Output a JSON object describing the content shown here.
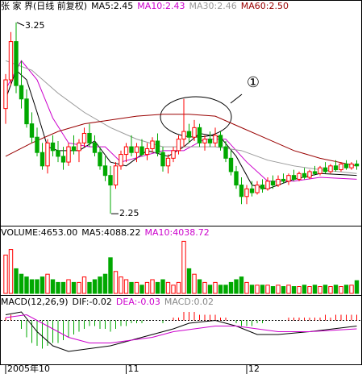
{
  "chart_data": [
    {
      "type": "candlestick",
      "title": "张 家 界(日线 前复权)",
      "callout": "①",
      "up_color": "#ff0000",
      "down_color": "#00a800",
      "ylim": [
        2.2,
        3.3
      ],
      "open": [
        2.8,
        2.95,
        3.15,
        2.92,
        2.85,
        2.72,
        2.65,
        2.57,
        2.5,
        2.62,
        2.58,
        2.55,
        2.52,
        2.6,
        2.58,
        2.62,
        2.67,
        2.62,
        2.57,
        2.5,
        2.45,
        2.4,
        2.5,
        2.56,
        2.6,
        2.57,
        2.6,
        2.56,
        2.59,
        2.63,
        2.57,
        2.5,
        2.54,
        2.58,
        2.64,
        2.68,
        2.65,
        2.7,
        2.62,
        2.64,
        2.62,
        2.66,
        2.6,
        2.54,
        2.47,
        2.4,
        2.34,
        2.38,
        2.36,
        2.4,
        2.38,
        2.42,
        2.4,
        2.43,
        2.42,
        2.45,
        2.43,
        2.46,
        2.44,
        2.47,
        2.46,
        2.49,
        2.47,
        2.5,
        2.48,
        2.51,
        2.49,
        2.51
      ],
      "high": [
        2.98,
        3.2,
        3.25,
        3.05,
        2.9,
        2.78,
        2.7,
        2.62,
        2.64,
        2.66,
        2.63,
        2.6,
        2.62,
        2.66,
        2.64,
        2.7,
        2.72,
        2.66,
        2.6,
        2.55,
        2.5,
        2.52,
        2.58,
        2.62,
        2.66,
        2.62,
        2.64,
        2.62,
        2.65,
        2.67,
        2.6,
        2.56,
        2.6,
        2.66,
        2.85,
        2.72,
        2.74,
        2.72,
        2.66,
        2.68,
        2.7,
        2.68,
        2.63,
        2.58,
        2.5,
        2.44,
        2.4,
        2.42,
        2.42,
        2.43,
        2.44,
        2.45,
        2.45,
        2.46,
        2.46,
        2.48,
        2.47,
        2.49,
        2.48,
        2.5,
        2.5,
        2.52,
        2.51,
        2.53,
        2.52,
        2.53,
        2.52,
        2.53
      ],
      "low": [
        2.72,
        2.92,
        2.88,
        2.8,
        2.7,
        2.62,
        2.55,
        2.48,
        2.46,
        2.55,
        2.52,
        2.48,
        2.5,
        2.56,
        2.52,
        2.6,
        2.6,
        2.55,
        2.48,
        2.42,
        2.25,
        2.38,
        2.48,
        2.52,
        2.55,
        2.52,
        2.55,
        2.53,
        2.57,
        2.55,
        2.47,
        2.46,
        2.52,
        2.56,
        2.6,
        2.62,
        2.63,
        2.6,
        2.58,
        2.6,
        2.6,
        2.58,
        2.52,
        2.45,
        2.38,
        2.3,
        2.3,
        2.34,
        2.35,
        2.36,
        2.37,
        2.38,
        2.39,
        2.41,
        2.4,
        2.42,
        2.42,
        2.43,
        2.43,
        2.45,
        2.45,
        2.46,
        2.46,
        2.47,
        2.47,
        2.48,
        2.48,
        2.48
      ],
      "close": [
        2.95,
        3.15,
        2.92,
        2.85,
        2.72,
        2.65,
        2.57,
        2.5,
        2.62,
        2.58,
        2.55,
        2.52,
        2.6,
        2.58,
        2.62,
        2.67,
        2.62,
        2.57,
        2.5,
        2.45,
        2.4,
        2.5,
        2.56,
        2.6,
        2.57,
        2.6,
        2.56,
        2.59,
        2.63,
        2.57,
        2.5,
        2.54,
        2.58,
        2.64,
        2.68,
        2.65,
        2.7,
        2.62,
        2.64,
        2.62,
        2.66,
        2.6,
        2.54,
        2.47,
        2.4,
        2.34,
        2.38,
        2.36,
        2.4,
        2.38,
        2.42,
        2.4,
        2.43,
        2.42,
        2.45,
        2.43,
        2.46,
        2.44,
        2.47,
        2.46,
        2.49,
        2.47,
        2.5,
        2.48,
        2.51,
        2.49,
        2.51,
        2.5
      ],
      "annotations": [
        {
          "x": 2,
          "value": 3.25
        },
        {
          "x": 20,
          "value": 2.25
        }
      ],
      "lines": [
        {
          "name": "MA5:2.45",
          "color": "#000000",
          "x": [
            0,
            2,
            4,
            6,
            8,
            10,
            14,
            17,
            20,
            23,
            27,
            31,
            34,
            37,
            41,
            44,
            47,
            50,
            55,
            60,
            67
          ],
          "values": [
            2.85,
            3.0,
            2.95,
            2.78,
            2.6,
            2.58,
            2.58,
            2.63,
            2.52,
            2.5,
            2.58,
            2.55,
            2.6,
            2.67,
            2.65,
            2.55,
            2.4,
            2.38,
            2.43,
            2.46,
            2.45
          ]
        },
        {
          "name": "MA10:2.43",
          "color": "#cc00cc",
          "x": [
            0,
            3,
            6,
            9,
            12,
            16,
            19,
            22,
            26,
            30,
            34,
            38,
            42,
            46,
            50,
            55,
            60,
            67
          ],
          "values": [
            2.9,
            3.05,
            2.95,
            2.75,
            2.62,
            2.6,
            2.6,
            2.52,
            2.55,
            2.58,
            2.58,
            2.64,
            2.64,
            2.52,
            2.42,
            2.42,
            2.44,
            2.43
          ]
        },
        {
          "name": "MA30:2.46",
          "color": "#999999",
          "x": [
            0,
            5,
            10,
            15,
            20,
            25,
            30,
            35,
            40,
            45,
            50,
            55,
            60,
            67
          ],
          "values": [
            3.05,
            3.0,
            2.88,
            2.78,
            2.7,
            2.64,
            2.6,
            2.6,
            2.6,
            2.58,
            2.53,
            2.5,
            2.48,
            2.46
          ]
        },
        {
          "name": "MA60:2.50",
          "color": "#990000",
          "x": [
            0,
            5,
            10,
            15,
            20,
            25,
            30,
            35,
            40,
            45,
            50,
            55,
            60,
            67
          ],
          "values": [
            2.55,
            2.62,
            2.68,
            2.72,
            2.74,
            2.76,
            2.77,
            2.77,
            2.76,
            2.7,
            2.64,
            2.58,
            2.54,
            2.5
          ]
        }
      ]
    },
    {
      "type": "bar",
      "title": "VOLUME:4653.00",
      "ylim": [
        0,
        20000
      ],
      "legend": [
        {
          "label": "MA5:4088.22",
          "color": "#000000"
        },
        {
          "label": "MA10:4038.72",
          "color": "#cc00cc"
        }
      ],
      "values": [
        14000,
        16000,
        9000,
        7000,
        6000,
        5000,
        5000,
        6000,
        7000,
        5000,
        4000,
        4000,
        5000,
        4000,
        4000,
        6000,
        4000,
        5000,
        6000,
        7000,
        13000,
        8000,
        6000,
        5000,
        4000,
        4000,
        3000,
        4000,
        5000,
        4000,
        5000,
        4000,
        3000,
        4000,
        19000,
        9000,
        7000,
        5000,
        4000,
        3000,
        4000,
        3000,
        3000,
        4000,
        5000,
        6000,
        4000,
        3000,
        3000,
        3000,
        3000,
        2500,
        3000,
        2500,
        3000,
        2500,
        2500,
        3000,
        2500,
        3000,
        2500,
        3000,
        2500,
        3000,
        2500,
        3000,
        3000,
        4653
      ]
    },
    {
      "type": "macd",
      "title": "MACD(12,26,9)",
      "ylim": [
        -0.15,
        0.05
      ],
      "bars": {
        "name": "MACD:0.02",
        "color": "#888888",
        "values": [
          0.01,
          0.02,
          0,
          -0.03,
          -0.06,
          -0.08,
          -0.09,
          -0.1,
          -0.09,
          -0.08,
          -0.08,
          -0.07,
          -0.06,
          -0.05,
          -0.04,
          -0.03,
          -0.02,
          -0.02,
          -0.03,
          -0.03,
          -0.04,
          -0.03,
          -0.02,
          -0.02,
          -0.01,
          -0.01,
          -0.01,
          0,
          0,
          0,
          -0.01,
          0,
          0.01,
          0.01,
          0.03,
          0.03,
          0.03,
          0.02,
          0.02,
          0.02,
          0.02,
          0.01,
          0.01,
          0,
          -0.01,
          -0.02,
          -0.02,
          -0.02,
          -0.01,
          -0.01,
          0,
          0,
          0,
          0,
          0.01,
          0.01,
          0.01,
          0.01,
          0.01,
          0.01,
          0.01,
          0.02,
          0.01,
          0.02,
          0.02,
          0.02,
          0.02,
          0.02
        ]
      },
      "lines": [
        {
          "name": "DIF:-0.02",
          "color": "#000000",
          "x": [
            0,
            3,
            6,
            9,
            12,
            16,
            20,
            24,
            28,
            32,
            35,
            40,
            44,
            48,
            52,
            58,
            67
          ],
          "values": [
            0.02,
            0.03,
            -0.04,
            -0.09,
            -0.11,
            -0.1,
            -0.09,
            -0.07,
            -0.05,
            -0.03,
            -0.01,
            0,
            -0.02,
            -0.05,
            -0.05,
            -0.04,
            -0.02
          ]
        },
        {
          "name": "DEA:-0.03",
          "color": "#cc00cc",
          "x": [
            0,
            4,
            8,
            12,
            16,
            20,
            24,
            28,
            32,
            36,
            40,
            44,
            48,
            52,
            58,
            67
          ],
          "values": [
            0.01,
            0.02,
            -0.02,
            -0.06,
            -0.08,
            -0.08,
            -0.07,
            -0.06,
            -0.04,
            -0.03,
            -0.02,
            -0.02,
            -0.03,
            -0.04,
            -0.04,
            -0.03
          ]
        }
      ],
      "xticks": [
        {
          "value": 0,
          "label": "2005年10"
        },
        {
          "value": 23,
          "label": "11"
        },
        {
          "value": 46,
          "label": "12"
        }
      ]
    }
  ]
}
